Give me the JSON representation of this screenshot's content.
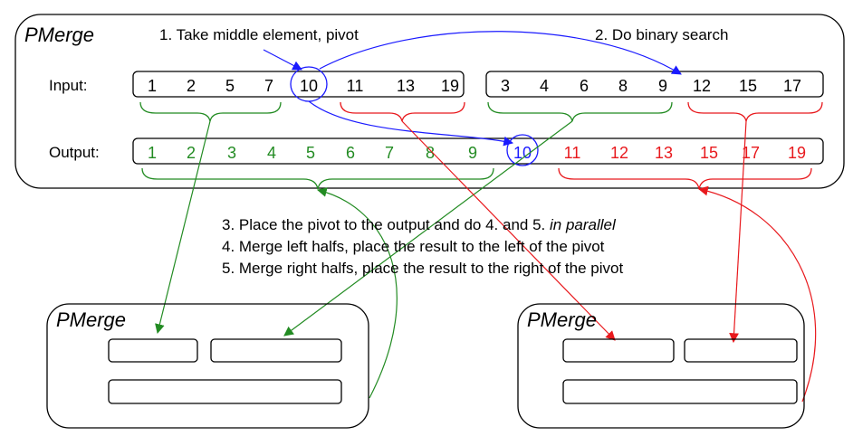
{
  "main": {
    "title": "PMerge",
    "step1": "1. Take middle element, pivot",
    "step2": "2. Do binary search",
    "input_label": "Input:",
    "output_label": "Output:",
    "input_left": [
      "1",
      "2",
      "5",
      "7",
      "10",
      "11",
      "13",
      "19"
    ],
    "input_right": [
      "3",
      "4",
      "6",
      "8",
      "9",
      "12",
      "15",
      "17"
    ],
    "output": [
      "1",
      "2",
      "3",
      "4",
      "5",
      "6",
      "7",
      "8",
      "9",
      "10",
      "11",
      "12",
      "13",
      "15",
      "17",
      "19"
    ]
  },
  "instructions": {
    "line3_prefix": "3. Place the pivot to the output and do 4. and 5. ",
    "line3_emphasis": "in parallel",
    "line4": "4. Merge left halfs, place the result to the left of the pivot",
    "line5": "5. Merge right halfs, place the result to the right of the pivot"
  },
  "left_sub": {
    "title": "PMerge"
  },
  "right_sub": {
    "title": "PMerge"
  },
  "colors": {
    "green": "#228b22",
    "red": "#e8191d",
    "blue": "#1a1aff",
    "black": "#000000"
  }
}
